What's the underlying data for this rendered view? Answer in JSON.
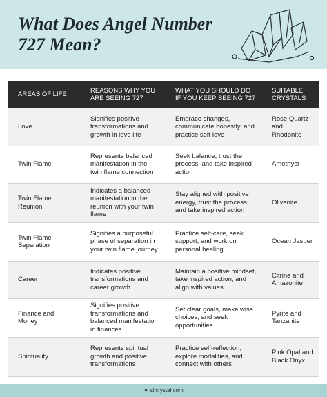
{
  "header": {
    "title": "What Does Angel Number 727 Mean?"
  },
  "table": {
    "columns": [
      "AREAS OF LIFE",
      "REASONS WHY YOU ARE SEEING 727",
      "WHAT YOU SHOULD DO IF YOU KEEP SEEING 727",
      "SUITABLE CRYSTALS"
    ],
    "rows": [
      [
        "Love",
        "Signifies positive transformations and growth in love life",
        "Embrace changes, communicate honestly, and practice self-love",
        "Rose Quartz and Rhodonite"
      ],
      [
        "Twin Flame",
        "Represents balanced manifestation in the twin flame connection",
        "Seek balance, trust the process, and take inspired action",
        "Amethyst"
      ],
      [
        "Twin Flame Reunion",
        "Indicates a balanced manifestation in the reunion with your twin flame",
        "Stay aligned with positive energy, trust the process, and take inspired action",
        "Olivenite"
      ],
      [
        "Twin Flame Separation",
        "Signifies a purposeful phase of separation in your twin flame journey",
        "Practice self-care, seek support, and work on personal healing",
        "Ocean Jasper"
      ],
      [
        "Career",
        "Indicates positive transformations and career growth",
        "Maintain a positive mindset, take inspired action, and align with values",
        "Citrine and Amazonite"
      ],
      [
        "Finance and Money",
        "Signifies positive transformations and balanced manifestation in finances",
        "Set clear goals, make wise choices, and seek opportunities",
        "Pyrite and Tanzanite"
      ],
      [
        "Spirituality",
        "Represents spiritual growth and positive transformations",
        "Practice self-reflection, explore modalities, and connect with others",
        "Pink Opal and Black Onyx"
      ]
    ]
  },
  "footer": {
    "site": "allcrystal.com"
  }
}
